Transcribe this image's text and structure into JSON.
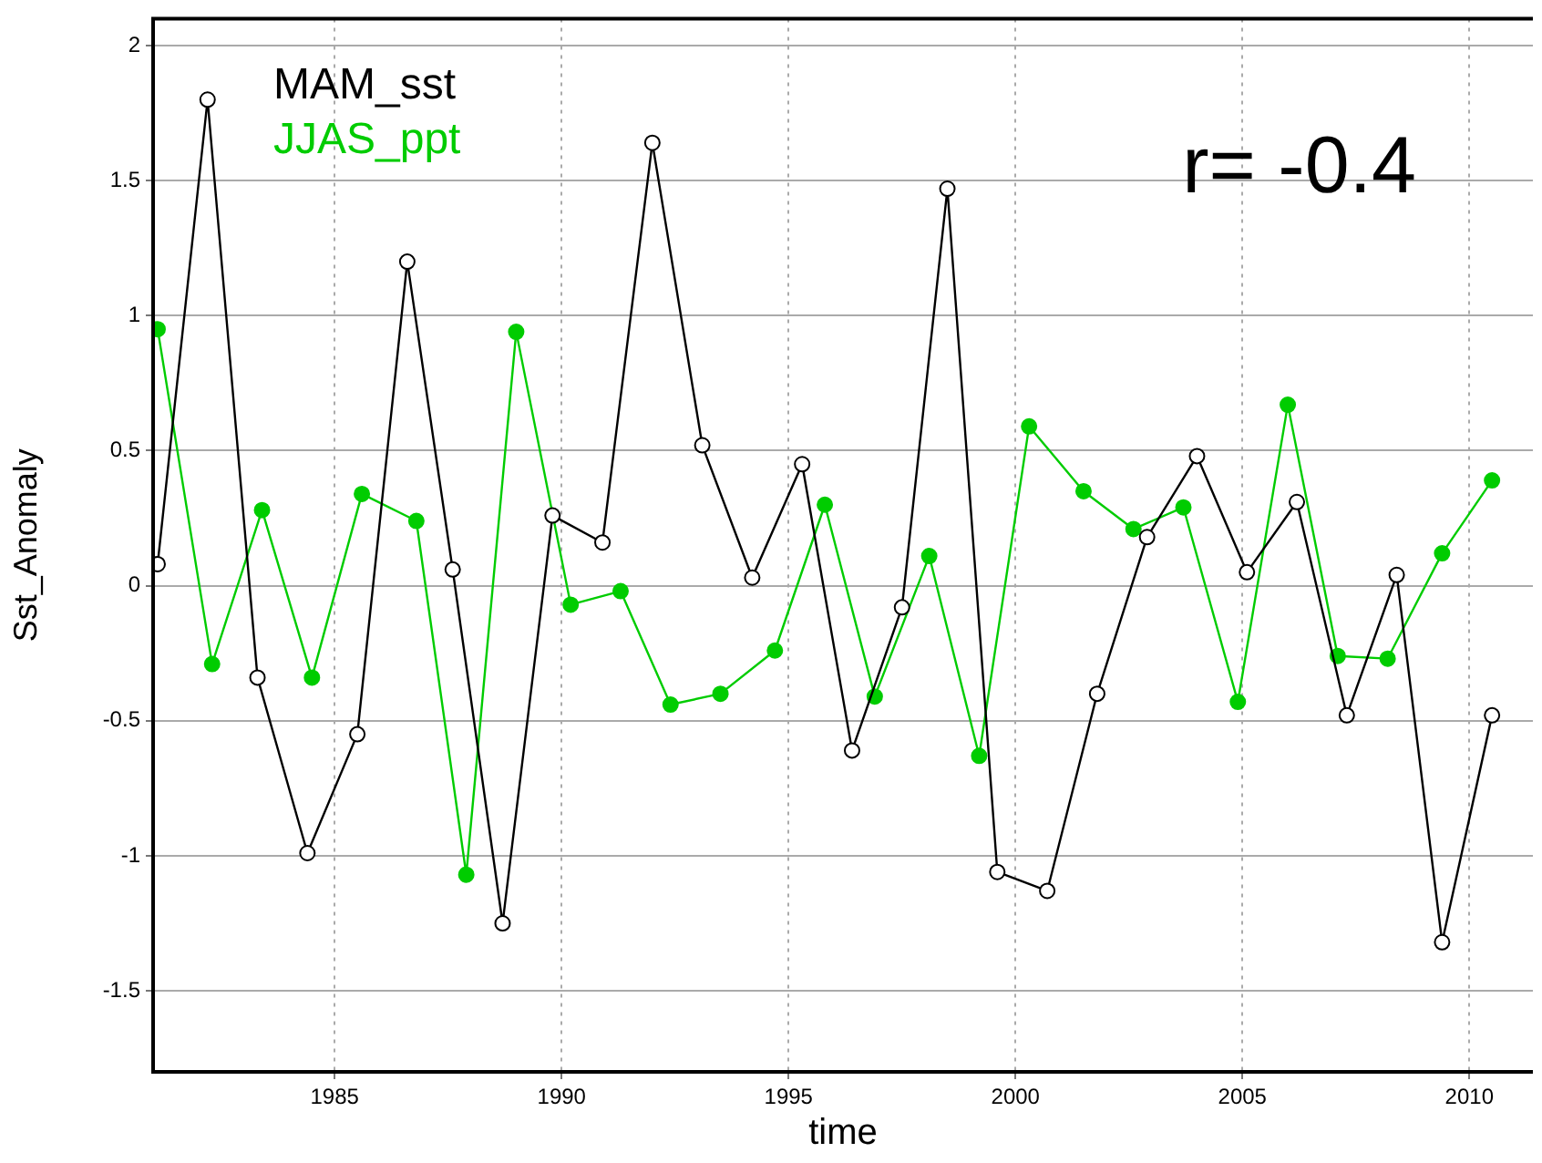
{
  "chart_data": {
    "type": "line",
    "xlabel": "time",
    "ylabel": "Sst_Anomaly",
    "xlim": [
      1981,
      2011.4
    ],
    "xticks": [
      1985,
      1990,
      1995,
      2000,
      2005,
      2010
    ],
    "ylim": [
      -1.8,
      2.1
    ],
    "yticks": [
      {
        "value": 2,
        "label": "2"
      },
      {
        "value": 1.5,
        "label": "1.5"
      },
      {
        "value": 1,
        "label": "1"
      },
      {
        "value": 0.5,
        "label": "0.5"
      },
      {
        "value": 0,
        "label": "0"
      },
      {
        "value": -0.5,
        "label": "-0.5"
      },
      {
        "value": -1,
        "label": "-1"
      },
      {
        "value": -1.5,
        "label": "-1.5"
      }
    ],
    "grid": true,
    "legend": "top left",
    "marker": "circle",
    "line_style": "solid",
    "annotations": [
      "r= -0.4"
    ],
    "series": [
      {
        "name": "MAM_sst",
        "color": "#000000",
        "x": [
          1981.1,
          1982.2,
          1983.3,
          1984.4,
          1985.5,
          1986.6,
          1987.6,
          1988.7,
          1989.8,
          1990.9,
          1992.0,
          1993.1,
          1994.2,
          1995.3,
          1996.4,
          1997.5,
          1998.5,
          1999.6,
          2000.7,
          2001.8,
          2002.9,
          2004.0,
          2005.1,
          2006.2,
          2007.3,
          2008.4,
          2009.4,
          2010.5
        ],
        "values": [
          0.08,
          1.8,
          -0.34,
          -0.99,
          -0.55,
          1.2,
          0.06,
          -1.25,
          0.26,
          0.16,
          1.64,
          0.52,
          0.03,
          0.45,
          -0.61,
          -0.08,
          1.47,
          -1.06,
          -1.13,
          -0.4,
          0.18,
          0.48,
          0.05,
          0.31,
          -0.48,
          0.04,
          -1.32,
          -0.48
        ]
      },
      {
        "name": "JJAS_ppt",
        "color": "#00cc00",
        "x": [
          1981.1,
          1982.3,
          1983.4,
          1984.5,
          1985.6,
          1986.8,
          1987.9,
          1989.0,
          1990.2,
          1991.3,
          1992.4,
          1993.5,
          1994.7,
          1995.8,
          1996.9,
          1998.1,
          1999.2,
          2000.3,
          2001.5,
          2002.6,
          2003.7,
          2004.9,
          2006.0,
          2007.1,
          2008.2,
          2009.4,
          2010.5
        ],
        "values": [
          0.95,
          -0.29,
          0.28,
          -0.34,
          0.34,
          0.24,
          -1.07,
          0.94,
          -0.07,
          -0.02,
          -0.44,
          -0.4,
          -0.24,
          0.3,
          -0.41,
          0.11,
          -0.63,
          0.59,
          0.35,
          0.21,
          0.29,
          -0.43,
          0.67,
          -0.26,
          -0.27,
          0.12,
          0.39
        ]
      }
    ]
  }
}
